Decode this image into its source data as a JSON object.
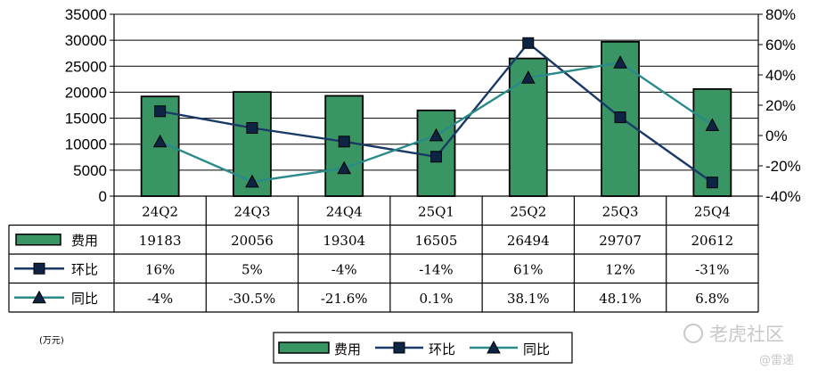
{
  "chart_data": {
    "type": "bar",
    "categories": [
      "24Q2",
      "24Q3",
      "24Q4",
      "25Q1",
      "25Q2",
      "25Q3",
      "25Q4"
    ],
    "series": [
      {
        "name": "费用",
        "type": "bar",
        "axis": "left",
        "color": "#3a9565",
        "values": [
          19183,
          20056,
          19304,
          16505,
          26494,
          29707,
          20612
        ],
        "labels": [
          "19183",
          "20056",
          "19304",
          "16505",
          "26494",
          "29707",
          "20612"
        ]
      },
      {
        "name": "环比",
        "type": "line",
        "axis": "right",
        "color": "#1a3a66",
        "marker": "square",
        "values": [
          16,
          5,
          -4,
          -14,
          61,
          12,
          -31
        ],
        "labels": [
          "16%",
          "5%",
          "-4%",
          "-14%",
          "61%",
          "12%",
          "-31%"
        ]
      },
      {
        "name": "同比",
        "type": "line",
        "axis": "right",
        "color": "#2a8a8a",
        "marker": "triangle",
        "values": [
          -4,
          -30.5,
          -21.6,
          0.1,
          38.1,
          48.1,
          6.8
        ],
        "labels": [
          "-4%",
          "-30.5%",
          "-21.6%",
          "0.1%",
          "38.1%",
          "48.1%",
          "6.8%"
        ]
      }
    ],
    "y_left": {
      "min": 0,
      "max": 35000,
      "step": 5000,
      "ticks": [
        "0",
        "5000",
        "10000",
        "15000",
        "20000",
        "25000",
        "30000",
        "35000"
      ]
    },
    "y_right": {
      "min": -40,
      "max": 80,
      "step": 20,
      "ticks": [
        "-40%",
        "-20%",
        "0%",
        "20%",
        "40%",
        "60%",
        "80%"
      ]
    },
    "unit_label": "(万元)",
    "legend": {
      "placement": "bottom-center",
      "items": [
        "费用",
        "环比",
        "同比"
      ]
    },
    "grid": true
  },
  "watermark": {
    "brand": "老虎社区",
    "handle": "@雷递"
  }
}
